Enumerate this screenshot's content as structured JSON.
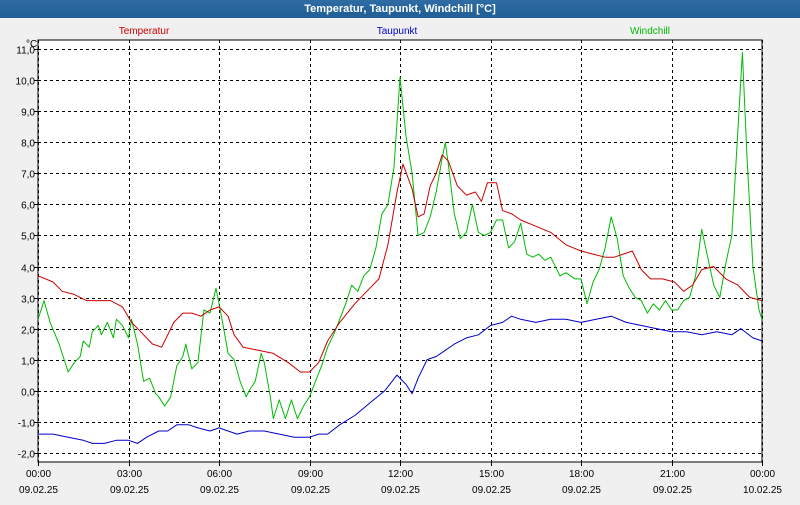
{
  "window": {
    "title": "Temperatur, Taupunkt, Windchill [°C]"
  },
  "colors": {
    "temperatur": "#cc0000",
    "taupunkt": "#0000cc",
    "windchill": "#00bb00",
    "grid": "#000000",
    "background": "#ffffff"
  },
  "chart_data": {
    "type": "line",
    "title": "Temperatur, Taupunkt, Windchill [°C]",
    "ylabel": "°C",
    "xlabel": "",
    "ylim": [
      -2.3,
      11.3
    ],
    "xlim": [
      0,
      24
    ],
    "yticks": [
      -2.0,
      -1.0,
      0.0,
      1.0,
      2.0,
      3.0,
      4.0,
      5.0,
      6.0,
      7.0,
      8.0,
      9.0,
      10.0,
      11.0
    ],
    "ytick_labels": [
      "-2,0",
      "-1,0",
      "0,0",
      "1,0",
      "2,0",
      "3,0",
      "4,0",
      "5,0",
      "6,0",
      "7,0",
      "8,0",
      "9,0",
      "10,0",
      "11,0"
    ],
    "xticks": [
      {
        "hour": 0,
        "time": "00:00",
        "date": "09.02.25"
      },
      {
        "hour": 3,
        "time": "03:00",
        "date": "09.02.25"
      },
      {
        "hour": 6,
        "time": "06:00",
        "date": "09.02.25"
      },
      {
        "hour": 9,
        "time": "09:00",
        "date": "09.02.25"
      },
      {
        "hour": 12,
        "time": "12:00",
        "date": "09.02.25"
      },
      {
        "hour": 15,
        "time": "15:00",
        "date": "09.02.25"
      },
      {
        "hour": 18,
        "time": "18:00",
        "date": "09.02.25"
      },
      {
        "hour": 21,
        "time": "21:00",
        "date": "09.02.25"
      },
      {
        "hour": 24,
        "time": "00:00",
        "date": "10.02.25"
      }
    ],
    "grid": true,
    "legend": [
      {
        "name": "Temperatur",
        "color": "#cc0000"
      },
      {
        "name": "Taupunkt",
        "color": "#0000cc"
      },
      {
        "name": "Windchill",
        "color": "#00bb00"
      }
    ],
    "series": [
      {
        "name": "Temperatur",
        "color": "#cc0000",
        "points": [
          [
            0,
            3.7
          ],
          [
            0.5,
            3.5
          ],
          [
            0.8,
            3.2
          ],
          [
            1.2,
            3.1
          ],
          [
            1.6,
            2.9
          ],
          [
            2.0,
            2.9
          ],
          [
            2.4,
            2.9
          ],
          [
            2.8,
            2.7
          ],
          [
            3.1,
            2.2
          ],
          [
            3.4,
            1.9
          ],
          [
            3.8,
            1.5
          ],
          [
            4.1,
            1.4
          ],
          [
            4.5,
            2.2
          ],
          [
            4.8,
            2.5
          ],
          [
            5.1,
            2.5
          ],
          [
            5.4,
            2.4
          ],
          [
            5.7,
            2.6
          ],
          [
            6.0,
            2.7
          ],
          [
            6.3,
            2.4
          ],
          [
            6.5,
            1.8
          ],
          [
            6.8,
            1.4
          ],
          [
            7.3,
            1.3
          ],
          [
            7.8,
            1.2
          ],
          [
            8.3,
            0.9
          ],
          [
            8.7,
            0.6
          ],
          [
            9.0,
            0.6
          ],
          [
            9.3,
            0.9
          ],
          [
            9.6,
            1.6
          ],
          [
            10.0,
            2.2
          ],
          [
            10.5,
            2.8
          ],
          [
            11.0,
            3.3
          ],
          [
            11.3,
            3.6
          ],
          [
            11.6,
            4.7
          ],
          [
            11.9,
            6.4
          ],
          [
            12.1,
            7.3
          ],
          [
            12.4,
            6.5
          ],
          [
            12.6,
            5.6
          ],
          [
            12.8,
            5.7
          ],
          [
            13.0,
            6.6
          ],
          [
            13.2,
            7.0
          ],
          [
            13.4,
            7.6
          ],
          [
            13.6,
            7.4
          ],
          [
            13.9,
            6.6
          ],
          [
            14.2,
            6.3
          ],
          [
            14.5,
            6.4
          ],
          [
            14.7,
            6.1
          ],
          [
            14.9,
            6.7
          ],
          [
            15.2,
            6.7
          ],
          [
            15.4,
            5.8
          ],
          [
            15.7,
            5.7
          ],
          [
            16.0,
            5.5
          ],
          [
            16.5,
            5.3
          ],
          [
            17.0,
            5.1
          ],
          [
            17.5,
            4.7
          ],
          [
            18.0,
            4.5
          ],
          [
            18.4,
            4.4
          ],
          [
            18.8,
            4.3
          ],
          [
            19.1,
            4.3
          ],
          [
            19.4,
            4.4
          ],
          [
            19.7,
            4.5
          ],
          [
            20.0,
            3.9
          ],
          [
            20.3,
            3.6
          ],
          [
            20.7,
            3.6
          ],
          [
            21.1,
            3.5
          ],
          [
            21.4,
            3.2
          ],
          [
            21.7,
            3.4
          ],
          [
            22.0,
            3.9
          ],
          [
            22.4,
            4.0
          ],
          [
            22.8,
            3.6
          ],
          [
            23.2,
            3.4
          ],
          [
            23.6,
            3.0
          ],
          [
            24.0,
            2.9
          ]
        ]
      },
      {
        "name": "Taupunkt",
        "color": "#0000cc",
        "points": [
          [
            0,
            -1.4
          ],
          [
            0.5,
            -1.4
          ],
          [
            1.0,
            -1.5
          ],
          [
            1.5,
            -1.6
          ],
          [
            1.8,
            -1.7
          ],
          [
            2.2,
            -1.7
          ],
          [
            2.6,
            -1.6
          ],
          [
            3.0,
            -1.6
          ],
          [
            3.3,
            -1.7
          ],
          [
            3.6,
            -1.5
          ],
          [
            4.0,
            -1.3
          ],
          [
            4.3,
            -1.3
          ],
          [
            4.6,
            -1.1
          ],
          [
            5.0,
            -1.1
          ],
          [
            5.3,
            -1.2
          ],
          [
            5.7,
            -1.3
          ],
          [
            6.0,
            -1.2
          ],
          [
            6.3,
            -1.3
          ],
          [
            6.6,
            -1.4
          ],
          [
            7.0,
            -1.3
          ],
          [
            7.5,
            -1.3
          ],
          [
            8.0,
            -1.4
          ],
          [
            8.5,
            -1.5
          ],
          [
            9.0,
            -1.5
          ],
          [
            9.3,
            -1.4
          ],
          [
            9.6,
            -1.4
          ],
          [
            10.0,
            -1.1
          ],
          [
            10.5,
            -0.8
          ],
          [
            11.0,
            -0.4
          ],
          [
            11.5,
            0.0
          ],
          [
            11.9,
            0.5
          ],
          [
            12.2,
            0.2
          ],
          [
            12.4,
            -0.1
          ],
          [
            12.6,
            0.4
          ],
          [
            12.9,
            1.0
          ],
          [
            13.2,
            1.1
          ],
          [
            13.5,
            1.3
          ],
          [
            13.8,
            1.5
          ],
          [
            14.2,
            1.7
          ],
          [
            14.6,
            1.8
          ],
          [
            15.0,
            2.1
          ],
          [
            15.4,
            2.2
          ],
          [
            15.7,
            2.4
          ],
          [
            16.0,
            2.3
          ],
          [
            16.5,
            2.2
          ],
          [
            17.0,
            2.3
          ],
          [
            17.5,
            2.3
          ],
          [
            18.0,
            2.2
          ],
          [
            18.5,
            2.3
          ],
          [
            19.0,
            2.4
          ],
          [
            19.5,
            2.2
          ],
          [
            20.0,
            2.1
          ],
          [
            20.5,
            2.0
          ],
          [
            21.0,
            1.9
          ],
          [
            21.5,
            1.9
          ],
          [
            22.0,
            1.8
          ],
          [
            22.5,
            1.9
          ],
          [
            23.0,
            1.8
          ],
          [
            23.3,
            2.0
          ],
          [
            23.7,
            1.7
          ],
          [
            24.0,
            1.6
          ]
        ]
      },
      {
        "name": "Windchill",
        "color": "#00bb00",
        "points": [
          [
            0,
            2.3
          ],
          [
            0.2,
            2.9
          ],
          [
            0.4,
            2.2
          ],
          [
            0.7,
            1.5
          ],
          [
            1.0,
            0.6
          ],
          [
            1.2,
            0.9
          ],
          [
            1.4,
            1.1
          ],
          [
            1.5,
            1.6
          ],
          [
            1.7,
            1.4
          ],
          [
            1.8,
            1.9
          ],
          [
            2.0,
            2.1
          ],
          [
            2.1,
            1.8
          ],
          [
            2.3,
            2.2
          ],
          [
            2.5,
            1.7
          ],
          [
            2.6,
            2.3
          ],
          [
            2.8,
            2.1
          ],
          [
            3.0,
            1.7
          ],
          [
            3.1,
            2.3
          ],
          [
            3.3,
            1.5
          ],
          [
            3.5,
            0.3
          ],
          [
            3.7,
            0.4
          ],
          [
            3.9,
            -0.1
          ],
          [
            4.0,
            -0.2
          ],
          [
            4.2,
            -0.5
          ],
          [
            4.4,
            -0.2
          ],
          [
            4.6,
            0.8
          ],
          [
            4.8,
            1.1
          ],
          [
            4.9,
            1.5
          ],
          [
            5.1,
            0.7
          ],
          [
            5.3,
            0.9
          ],
          [
            5.5,
            2.6
          ],
          [
            5.7,
            2.5
          ],
          [
            5.9,
            3.3
          ],
          [
            6.1,
            2.3
          ],
          [
            6.3,
            1.2
          ],
          [
            6.5,
            1.0
          ],
          [
            6.7,
            0.3
          ],
          [
            6.9,
            -0.2
          ],
          [
            7.0,
            0.0
          ],
          [
            7.2,
            0.3
          ],
          [
            7.4,
            1.2
          ],
          [
            7.5,
            0.9
          ],
          [
            7.7,
            -0.2
          ],
          [
            7.8,
            -0.9
          ],
          [
            8.0,
            -0.3
          ],
          [
            8.2,
            -0.9
          ],
          [
            8.4,
            -0.3
          ],
          [
            8.6,
            -0.9
          ],
          [
            8.8,
            -0.5
          ],
          [
            9.0,
            -0.2
          ],
          [
            9.2,
            0.3
          ],
          [
            9.4,
            0.8
          ],
          [
            9.6,
            1.4
          ],
          [
            9.8,
            1.8
          ],
          [
            10.0,
            2.3
          ],
          [
            10.2,
            2.8
          ],
          [
            10.4,
            3.4
          ],
          [
            10.6,
            3.2
          ],
          [
            10.8,
            3.7
          ],
          [
            11.0,
            3.9
          ],
          [
            11.2,
            4.6
          ],
          [
            11.4,
            5.7
          ],
          [
            11.6,
            6.0
          ],
          [
            11.8,
            7.2
          ],
          [
            12.0,
            10.1
          ],
          [
            12.2,
            8.2
          ],
          [
            12.4,
            7.0
          ],
          [
            12.6,
            5.0
          ],
          [
            12.8,
            5.1
          ],
          [
            13.0,
            5.6
          ],
          [
            13.2,
            6.4
          ],
          [
            13.4,
            7.5
          ],
          [
            13.5,
            8.0
          ],
          [
            13.6,
            7.3
          ],
          [
            13.8,
            5.7
          ],
          [
            14.0,
            4.9
          ],
          [
            14.2,
            5.1
          ],
          [
            14.4,
            6.0
          ],
          [
            14.6,
            5.1
          ],
          [
            14.8,
            5.0
          ],
          [
            15.0,
            5.1
          ],
          [
            15.2,
            5.5
          ],
          [
            15.4,
            5.5
          ],
          [
            15.6,
            4.6
          ],
          [
            15.8,
            4.8
          ],
          [
            16.0,
            5.4
          ],
          [
            16.2,
            4.4
          ],
          [
            16.4,
            4.3
          ],
          [
            16.6,
            4.4
          ],
          [
            16.8,
            4.2
          ],
          [
            17.0,
            4.3
          ],
          [
            17.3,
            3.7
          ],
          [
            17.5,
            3.8
          ],
          [
            17.8,
            3.6
          ],
          [
            18.0,
            3.6
          ],
          [
            18.2,
            2.8
          ],
          [
            18.4,
            3.5
          ],
          [
            18.6,
            3.9
          ],
          [
            18.8,
            4.6
          ],
          [
            19.0,
            5.6
          ],
          [
            19.2,
            4.9
          ],
          [
            19.4,
            3.7
          ],
          [
            19.6,
            3.3
          ],
          [
            19.8,
            3.0
          ],
          [
            20.0,
            2.9
          ],
          [
            20.2,
            2.5
          ],
          [
            20.4,
            2.8
          ],
          [
            20.6,
            2.6
          ],
          [
            20.8,
            2.9
          ],
          [
            21.0,
            2.6
          ],
          [
            21.2,
            2.6
          ],
          [
            21.4,
            2.9
          ],
          [
            21.6,
            3.0
          ],
          [
            21.8,
            3.7
          ],
          [
            22.0,
            5.2
          ],
          [
            22.2,
            4.3
          ],
          [
            22.4,
            3.4
          ],
          [
            22.6,
            3.0
          ],
          [
            22.8,
            4.1
          ],
          [
            23.0,
            5.0
          ],
          [
            23.2,
            8.4
          ],
          [
            23.35,
            10.9
          ],
          [
            23.5,
            7.6
          ],
          [
            23.7,
            4.0
          ],
          [
            23.9,
            2.6
          ],
          [
            24.0,
            2.3
          ]
        ]
      }
    ]
  }
}
